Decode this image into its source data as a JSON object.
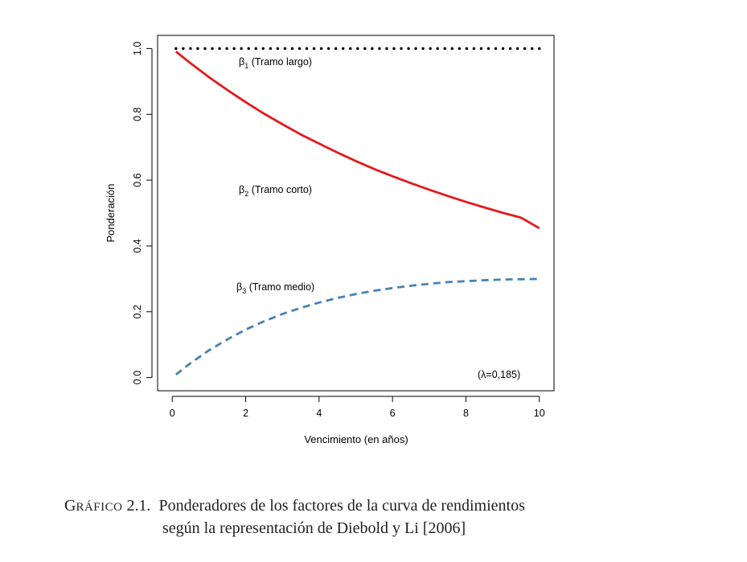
{
  "chart_data": {
    "type": "line",
    "x": [
      0.1,
      0.5,
      1,
      1.5,
      2,
      2.5,
      3,
      3.5,
      4,
      4.5,
      5,
      5.5,
      6,
      6.5,
      7,
      7.5,
      8,
      8.5,
      9,
      9.5,
      10
    ],
    "series": [
      {
        "name": "β1 (Tramo largo)",
        "label_main": "β",
        "label_sub": "1",
        "label_text": " (Tramo largo)",
        "style": "dotted",
        "color": "#000000",
        "values": [
          1.0,
          1.0,
          1.0,
          1.0,
          1.0,
          1.0,
          1.0,
          1.0,
          1.0,
          1.0,
          1.0,
          1.0,
          1.0,
          1.0,
          1.0,
          1.0,
          1.0,
          1.0,
          1.0,
          1.0,
          1.0
        ]
      },
      {
        "name": "β2 (Tramo corto)",
        "label_main": "β",
        "label_sub": "2",
        "label_text": " (Tramo corto)",
        "style": "solid",
        "color": "#e31a1c",
        "values": [
          0.991,
          0.955,
          0.913,
          0.874,
          0.837,
          0.802,
          0.77,
          0.739,
          0.711,
          0.684,
          0.658,
          0.634,
          0.612,
          0.591,
          0.571,
          0.552,
          0.534,
          0.517,
          0.501,
          0.486,
          0.454
        ]
      },
      {
        "name": "β3 (Tramo medio)",
        "label_main": "β",
        "label_sub": "3",
        "label_text": " (Tramo medio)",
        "style": "dashed",
        "color": "#4682b4",
        "values": [
          0.009,
          0.044,
          0.083,
          0.116,
          0.146,
          0.171,
          0.193,
          0.212,
          0.228,
          0.242,
          0.254,
          0.264,
          0.272,
          0.279,
          0.285,
          0.29,
          0.293,
          0.296,
          0.298,
          0.299,
          0.3
        ]
      }
    ],
    "xlabel": "Vencimiento (en años)",
    "ylabel": "Ponderación",
    "xlim": [
      -0.4,
      10.4
    ],
    "ylim": [
      -0.04,
      1.04
    ],
    "xticks": [
      "0",
      "2",
      "4",
      "6",
      "8",
      "10"
    ],
    "xtick_values": [
      0,
      2,
      4,
      6,
      8,
      10
    ],
    "yticks": [
      "0.0",
      "0.2",
      "0.4",
      "0.6",
      "0.8",
      "1.0"
    ],
    "ytick_values": [
      0.0,
      0.2,
      0.4,
      0.6,
      0.8,
      1.0
    ],
    "annotation": "(λ=0,185)",
    "grid": false
  },
  "caption": {
    "label_first": "G",
    "label_small": "RÁFICO",
    "label_number": " 2.1.",
    "line1": "Ponderadores de los factores de la curva de rendimientos",
    "line2": "según la representación de Diebold y Li [2006]"
  }
}
